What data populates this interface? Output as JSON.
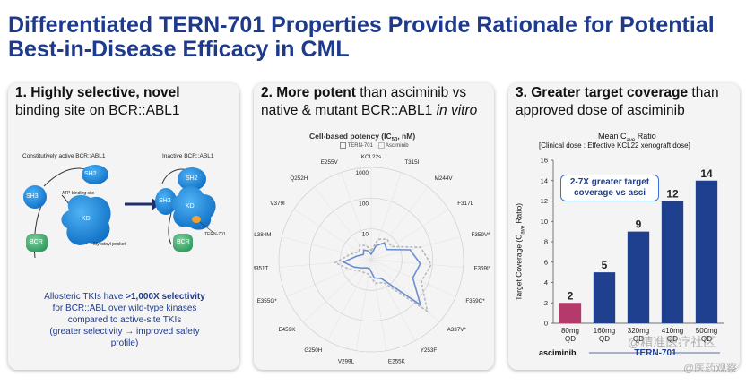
{
  "title": {
    "line1": "Differentiated TERN-701 Properties Provide Rationale for Potential",
    "line2": "Best-in-Disease Efficacy in CML"
  },
  "panel1": {
    "heading_bold": "1. Highly selective, novel",
    "heading_rest": "binding site on BCR::ABL1",
    "diagram": {
      "left_title": "Constitutively active BCR::ABL1",
      "right_title": "Inactive BCR::ABL1",
      "sh2": "SH2",
      "sh3": "SH3",
      "kd": "KD",
      "bcr": "BCR",
      "atp_site": "ATP-binding site",
      "myristoyl": "Myristoyl pocket",
      "drug": "TERN-701"
    },
    "note": {
      "line1_pre": "Allosteric TKIs have ",
      "line1_bold": ">1,000X selectivity",
      "line2": "for BCR::ABL over wild-type kinases",
      "line3": "compared to active-site TKIs",
      "line4": "(greater selectivity → improved safety",
      "line5": "profile)"
    }
  },
  "panel2": {
    "heading_bold": "2. More potent",
    "heading_rest1": " than asciminib vs",
    "heading_line2": "native & mutant BCR::ABL1 ",
    "heading_italic": "in vitro",
    "chart_data": {
      "type": "radar",
      "title_pre": "Cell-based potency (IC",
      "title_sub": "50",
      "title_post": ", nM)",
      "scale": "log",
      "rings": [
        1,
        10,
        100,
        1000
      ],
      "ring_labels": [
        "10",
        "100",
        "1000"
      ],
      "axes": [
        "KCL22s",
        "T315I",
        "M244V",
        "F317L",
        "F359V*",
        "F359I*",
        "F359C*",
        "A337V*",
        "Y253F",
        "E255K",
        "V299L",
        "G250H",
        "E459K",
        "E355G*",
        "M351T",
        "L384M",
        "V379I",
        "Q252H",
        "E255V"
      ],
      "series": [
        {
          "name": "TERN-701",
          "color": "#6c8ecf",
          "values": [
            1.5,
            3,
            5,
            4,
            20,
            40,
            30,
            150,
            5,
            4,
            2,
            2,
            2.5,
            4,
            8,
            3,
            2,
            2.5,
            2
          ]
        },
        {
          "name": "Asciminib",
          "color": "#b8b8b8",
          "values": [
            2,
            5,
            7,
            6,
            45,
            90,
            60,
            300,
            7,
            6,
            3,
            3,
            3.5,
            6,
            15,
            5,
            3,
            4,
            3
          ]
        }
      ]
    }
  },
  "panel3": {
    "heading_bold": "3. Greater target coverage",
    "heading_rest1": " than",
    "heading_line2": "approved dose of asciminib",
    "chart_data": {
      "type": "bar",
      "title_pre": "Mean C",
      "title_sub": "ave",
      "title_post": " Ratio",
      "subtitle": "[Clinical dose : Effective KCL22 xenograft dose]",
      "ylabel_pre": "Target Coverage (C",
      "ylabel_sub": "ave",
      "ylabel_post": " Ratio)",
      "ylim": [
        0,
        16
      ],
      "yticks": [
        0,
        2,
        4,
        6,
        8,
        10,
        12,
        14,
        16
      ],
      "categories": [
        "80mg QD",
        "160mg QD",
        "320mg QD",
        "410mg QD",
        "500mg QD"
      ],
      "values": [
        2,
        5,
        9,
        12,
        14
      ],
      "data_labels": [
        "2",
        "5",
        "9",
        "12",
        "14"
      ],
      "colors": [
        "#b33a6b",
        "#1f3f8f",
        "#1f3f8f",
        "#1f3f8f",
        "#1f3f8f"
      ],
      "group_labels": [
        "asciminib",
        "TERN-701"
      ],
      "annotation": {
        "line1": "2-7X greater target",
        "line2": "coverage vs asci"
      }
    }
  },
  "watermarks": {
    "w1": "@精准医疗社区",
    "w2": "@医药观察"
  }
}
